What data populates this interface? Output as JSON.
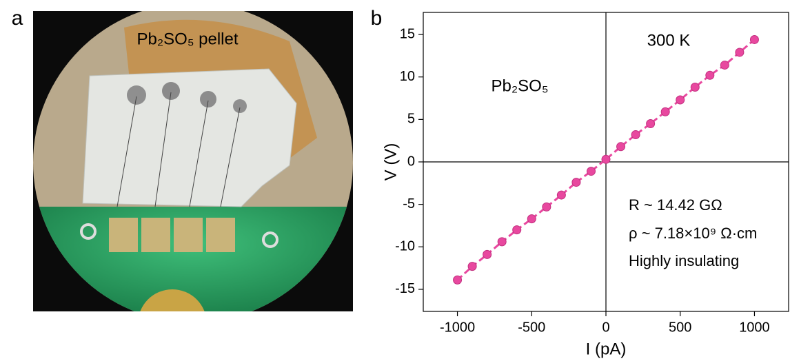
{
  "panel_a": {
    "label": "a",
    "caption": "Pb₂SO₅ pellet"
  },
  "chart_data": {
    "type": "scatter",
    "panel_label": "b",
    "x_label": "I (pA)",
    "y_label": "V (V)",
    "annotations": {
      "temperature": "300 K",
      "material": "Pb₂SO₅",
      "resistance": "R ~ 14.42 GΩ",
      "resistivity": "ρ ~ 7.18×10⁹ Ω·cm",
      "note": "Highly insulating"
    },
    "x": [
      -1000,
      -900,
      -800,
      -700,
      -600,
      -500,
      -400,
      -300,
      -200,
      -100,
      0,
      100,
      200,
      300,
      400,
      500,
      600,
      700,
      800,
      900,
      1000
    ],
    "series": [
      {
        "color": "#e8489f",
        "values": [
          -13.9,
          -12.3,
          -10.9,
          -9.4,
          -8.0,
          -6.7,
          -5.3,
          -3.9,
          -2.4,
          -1.1,
          0.3,
          1.8,
          3.2,
          4.5,
          5.9,
          7.3,
          8.8,
          10.2,
          11.4,
          12.9,
          14.4
        ]
      }
    ],
    "xlim": [
      -1230,
      1230
    ],
    "ylim": [
      -17.6,
      17.6
    ],
    "xticks": [
      -1000,
      -500,
      0,
      500,
      1000
    ],
    "yticks": [
      -15,
      -10,
      -5,
      0,
      5,
      10,
      15
    ]
  }
}
